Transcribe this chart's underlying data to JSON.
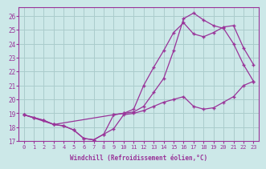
{
  "xlabel": "Windchill (Refroidissement éolien,°C)",
  "bg_color": "#cce8e8",
  "grid_color": "#aacccc",
  "line_color": "#993399",
  "xlim": [
    -0.5,
    23.5
  ],
  "ylim": [
    17,
    26.6
  ],
  "yticks": [
    17,
    18,
    19,
    20,
    21,
    22,
    23,
    24,
    25,
    26
  ],
  "xticks": [
    0,
    1,
    2,
    3,
    4,
    5,
    6,
    7,
    8,
    9,
    10,
    11,
    12,
    13,
    14,
    15,
    16,
    17,
    18,
    19,
    20,
    21,
    22,
    23
  ],
  "line1_x": [
    0,
    1,
    2,
    3,
    4,
    5,
    6,
    7,
    8,
    9,
    10,
    11,
    12,
    13,
    14,
    15,
    16,
    17,
    18,
    19,
    20,
    21,
    22,
    23
  ],
  "line1_y": [
    18.9,
    18.7,
    18.5,
    18.2,
    18.1,
    17.8,
    17.2,
    17.1,
    17.5,
    17.9,
    18.9,
    19.0,
    19.2,
    19.5,
    19.8,
    20.0,
    20.2,
    19.5,
    19.3,
    19.4,
    19.8,
    20.2,
    21.0,
    21.3
  ],
  "line2_x": [
    0,
    1,
    2,
    3,
    4,
    5,
    6,
    7,
    8,
    9,
    10,
    11,
    12,
    13,
    14,
    15,
    16,
    17,
    18,
    19,
    20,
    21,
    22,
    23
  ],
  "line2_y": [
    18.9,
    18.7,
    18.5,
    18.2,
    18.1,
    17.8,
    17.2,
    17.1,
    17.5,
    18.9,
    19.0,
    19.1,
    19.5,
    20.5,
    21.5,
    23.5,
    25.8,
    26.2,
    25.7,
    25.3,
    25.1,
    24.0,
    22.5,
    21.3
  ],
  "line3_x": [
    0,
    3,
    9,
    10,
    11,
    12,
    13,
    14,
    15,
    16,
    17,
    18,
    19,
    20,
    21,
    22,
    23
  ],
  "line3_y": [
    18.9,
    18.2,
    18.9,
    19.0,
    19.3,
    21.0,
    22.3,
    23.5,
    24.8,
    25.5,
    24.7,
    24.5,
    24.8,
    25.2,
    25.3,
    23.7,
    22.5
  ]
}
